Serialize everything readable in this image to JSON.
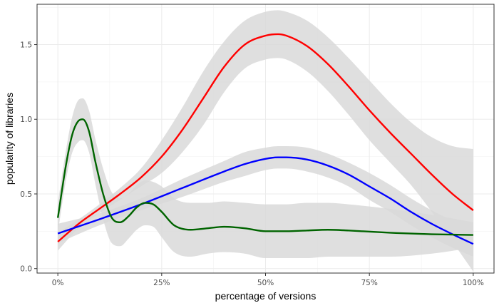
{
  "chart_data": {
    "type": "line",
    "xlabel": "percentage of versions",
    "ylabel": "popularity of libraries",
    "xlim": [
      -0.05,
      1.05
    ],
    "ylim": [
      -0.03,
      1.77
    ],
    "x_ticks": [
      0,
      0.25,
      0.5,
      0.75,
      1.0
    ],
    "x_tick_labels": [
      "0%",
      "25%",
      "50%",
      "75%",
      "100%"
    ],
    "y_ticks": [
      0,
      0.5,
      1.0,
      1.5
    ],
    "y_tick_labels": [
      "0.0",
      "0.5",
      "1.0",
      "1.5"
    ],
    "grid": true,
    "legend": "none",
    "band_color": "#d9d9d9",
    "series": [
      {
        "color": "#ff0000",
        "x": [
          0,
          0.05,
          0.1,
          0.15,
          0.2,
          0.25,
          0.3,
          0.35,
          0.4,
          0.45,
          0.5,
          0.53,
          0.55,
          0.6,
          0.65,
          0.7,
          0.75,
          0.8,
          0.85,
          0.9,
          0.95,
          1.0
        ],
        "y": [
          0.18,
          0.3,
          0.4,
          0.5,
          0.61,
          0.75,
          0.93,
          1.14,
          1.35,
          1.5,
          1.56,
          1.57,
          1.56,
          1.49,
          1.37,
          1.22,
          1.06,
          0.91,
          0.77,
          0.63,
          0.5,
          0.39
        ],
        "upper": [
          0.24,
          0.33,
          0.43,
          0.54,
          0.67,
          0.86,
          1.08,
          1.32,
          1.52,
          1.66,
          1.72,
          1.73,
          1.72,
          1.66,
          1.55,
          1.41,
          1.26,
          1.11,
          0.98,
          0.88,
          0.82,
          0.8
        ],
        "lower": [
          0.12,
          0.27,
          0.37,
          0.46,
          0.55,
          0.64,
          0.78,
          0.96,
          1.18,
          1.34,
          1.4,
          1.41,
          1.4,
          1.32,
          1.19,
          1.03,
          0.86,
          0.71,
          0.56,
          0.38,
          0.18,
          -0.02
        ]
      },
      {
        "color": "#0000ff",
        "x": [
          0,
          0.1,
          0.2,
          0.3,
          0.4,
          0.45,
          0.5,
          0.53,
          0.55,
          0.6,
          0.65,
          0.7,
          0.75,
          0.8,
          0.85,
          0.9,
          0.95,
          1.0
        ],
        "y": [
          0.235,
          0.33,
          0.43,
          0.54,
          0.65,
          0.7,
          0.735,
          0.745,
          0.745,
          0.73,
          0.69,
          0.63,
          0.55,
          0.47,
          0.38,
          0.3,
          0.23,
          0.165
        ],
        "upper": [
          0.3,
          0.37,
          0.47,
          0.6,
          0.72,
          0.78,
          0.81,
          0.82,
          0.82,
          0.81,
          0.77,
          0.71,
          0.64,
          0.56,
          0.47,
          0.39,
          0.32,
          0.25
        ],
        "lower": [
          0.17,
          0.29,
          0.39,
          0.48,
          0.58,
          0.62,
          0.66,
          0.67,
          0.67,
          0.65,
          0.61,
          0.55,
          0.46,
          0.38,
          0.29,
          0.21,
          0.14,
          0.08
        ]
      },
      {
        "color": "#006400",
        "x": [
          0,
          0.02,
          0.035,
          0.05,
          0.06,
          0.075,
          0.09,
          0.11,
          0.13,
          0.15,
          0.17,
          0.19,
          0.21,
          0.23,
          0.25,
          0.28,
          0.32,
          0.36,
          0.4,
          0.45,
          0.5,
          0.55,
          0.6,
          0.65,
          0.7,
          0.8,
          0.9,
          1.0
        ],
        "y": [
          0.34,
          0.7,
          0.9,
          0.99,
          1.0,
          0.92,
          0.72,
          0.49,
          0.34,
          0.31,
          0.35,
          0.41,
          0.44,
          0.43,
          0.38,
          0.29,
          0.26,
          0.27,
          0.28,
          0.27,
          0.25,
          0.25,
          0.255,
          0.26,
          0.255,
          0.24,
          0.23,
          0.225
        ],
        "upper": [
          0.44,
          0.8,
          1.02,
          1.13,
          1.14,
          1.06,
          0.87,
          0.66,
          0.51,
          0.47,
          0.5,
          0.56,
          0.59,
          0.58,
          0.55,
          0.47,
          0.44,
          0.44,
          0.45,
          0.44,
          0.43,
          0.43,
          0.44,
          0.44,
          0.43,
          0.4,
          0.36,
          0.31
        ],
        "lower": [
          0.24,
          0.6,
          0.78,
          0.85,
          0.86,
          0.78,
          0.57,
          0.32,
          0.17,
          0.15,
          0.2,
          0.26,
          0.29,
          0.28,
          0.21,
          0.11,
          0.08,
          0.1,
          0.11,
          0.1,
          0.07,
          0.07,
          0.07,
          0.08,
          0.08,
          0.08,
          0.1,
          0.14
        ]
      }
    ]
  }
}
